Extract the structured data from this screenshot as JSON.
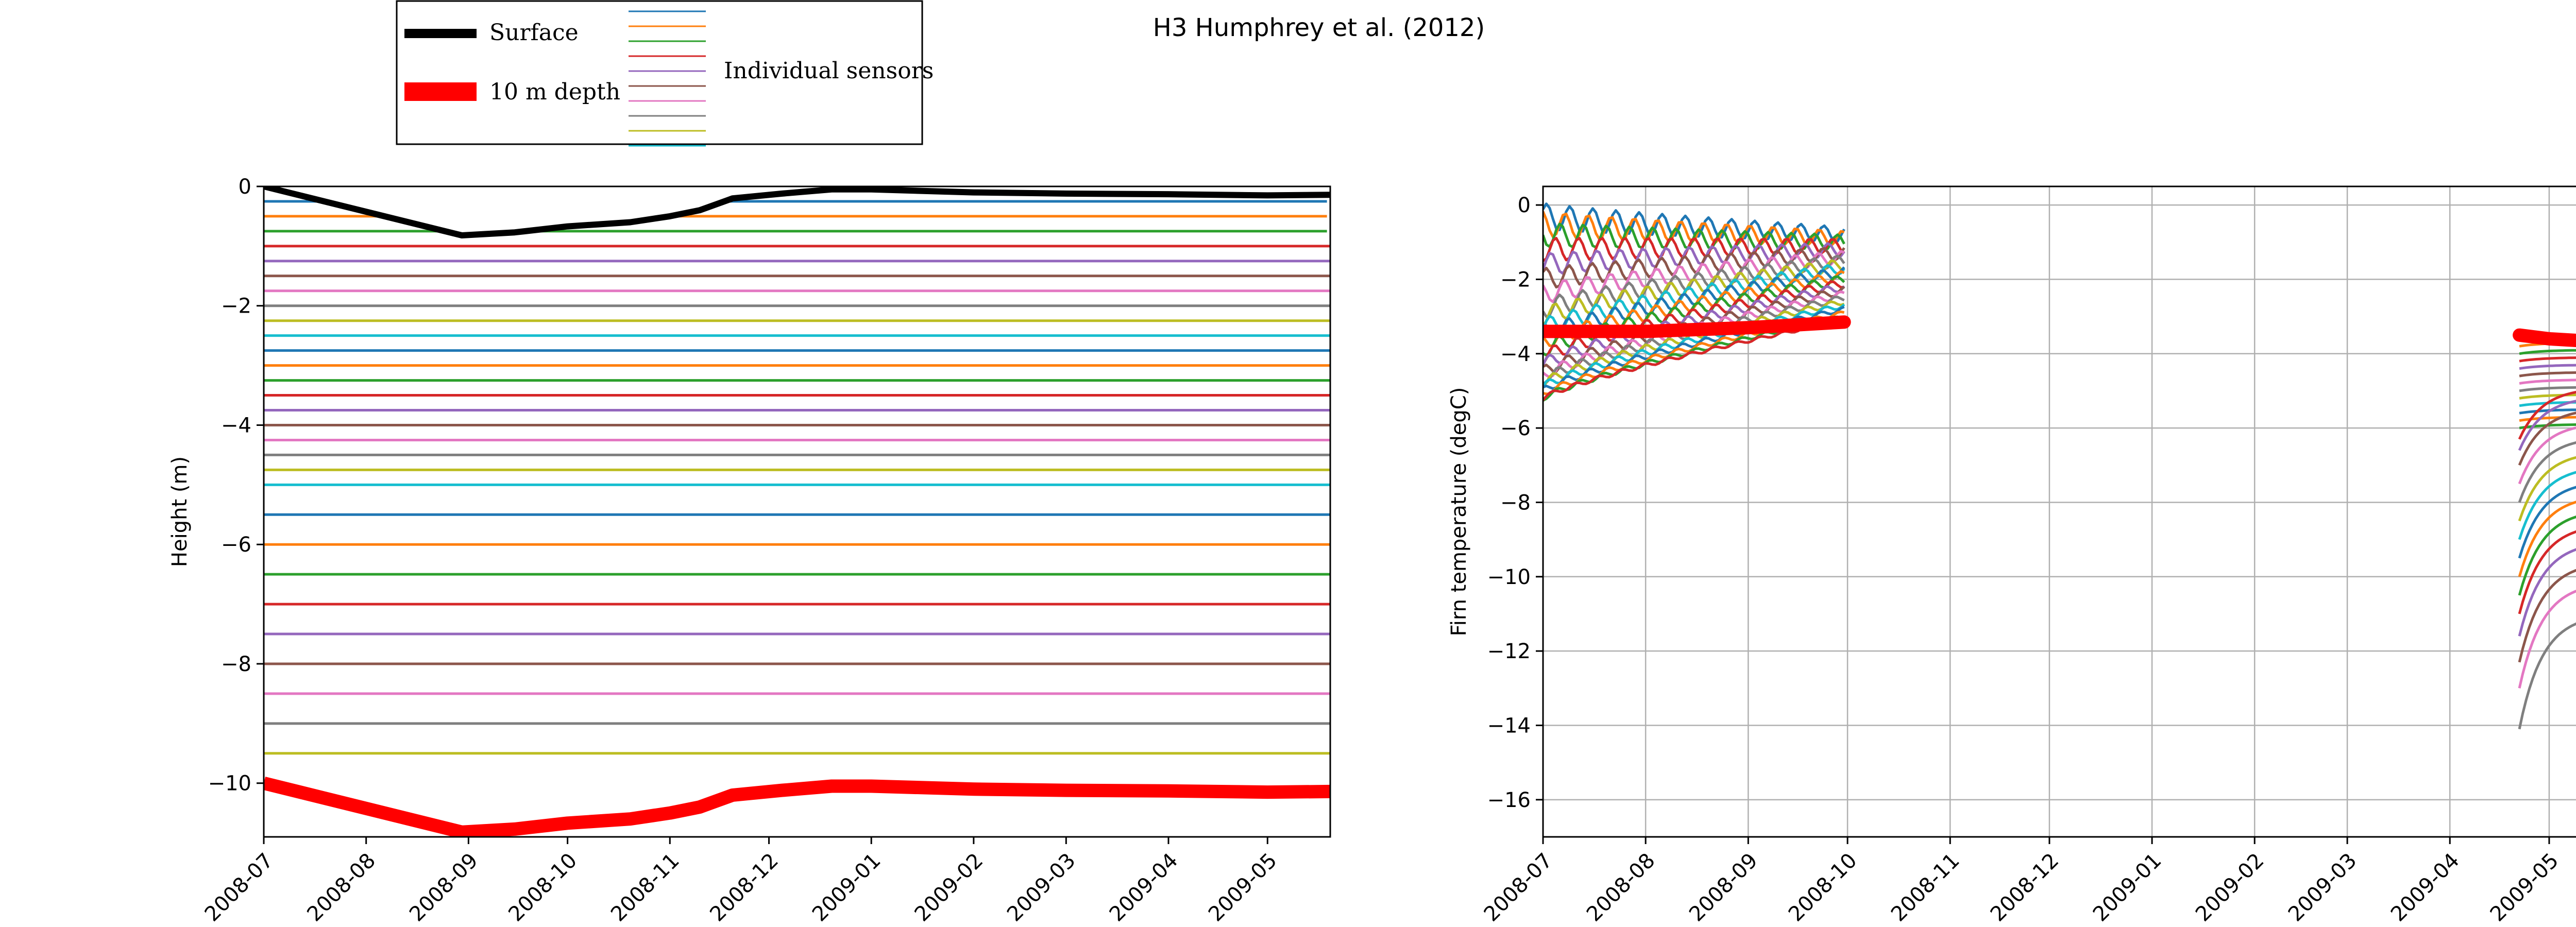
{
  "figure_title": "H3 Humphrey et al. (2012)",
  "legend": {
    "surface_label": "Surface",
    "depth_label": "10 m depth",
    "sensors_label": "Individual sensors",
    "surface_color": "#000000",
    "depth_color": "#ff0000",
    "sensor_colors": [
      "#1f77b4",
      "#ff7f0e",
      "#2ca02c",
      "#d62728",
      "#9467bd",
      "#8c564b",
      "#e377c2",
      "#7f7f7f",
      "#bcbd22",
      "#17becf"
    ]
  },
  "chart_data": [
    {
      "type": "line",
      "title": "",
      "xlabel": "",
      "ylabel": "Height (m)",
      "x_axis": "date",
      "xlim": [
        "2008-07-01",
        "2009-05-20"
      ],
      "ylim": [
        -10.9,
        0
      ],
      "xticks": [
        "2008-07",
        "2008-08",
        "2008-09",
        "2008-10",
        "2008-11",
        "2008-12",
        "2009-01",
        "2009-02",
        "2009-03",
        "2009-04",
        "2009-05"
      ],
      "yticks": [
        0,
        -2,
        -4,
        -6,
        -8,
        -10
      ],
      "grid": false,
      "surface": {
        "x": [
          "2008-07-01",
          "2008-08-30",
          "2008-09-15",
          "2008-10-01",
          "2008-10-20",
          "2008-11-01",
          "2008-11-10",
          "2008-11-20",
          "2008-12-05",
          "2008-12-20",
          "2009-01-01",
          "2009-02-01",
          "2009-03-01",
          "2009-04-01",
          "2009-05-01",
          "2009-05-20"
        ],
        "y": [
          0.0,
          -0.82,
          -0.77,
          -0.67,
          -0.6,
          -0.5,
          -0.4,
          -0.2,
          -0.12,
          -0.05,
          -0.05,
          -0.1,
          -0.12,
          -0.13,
          -0.15,
          -0.14
        ]
      },
      "ten_m_depth": {
        "x": [
          "2008-07-01",
          "2008-08-30",
          "2008-09-15",
          "2008-10-01",
          "2008-10-20",
          "2008-11-01",
          "2008-11-10",
          "2008-11-20",
          "2008-12-05",
          "2008-12-20",
          "2009-01-01",
          "2009-02-01",
          "2009-03-01",
          "2009-04-01",
          "2009-05-01",
          "2009-05-20"
        ],
        "y": [
          -10.0,
          -10.82,
          -10.77,
          -10.67,
          -10.6,
          -10.5,
          -10.4,
          -10.2,
          -10.12,
          -10.05,
          -10.05,
          -10.1,
          -10.12,
          -10.13,
          -10.15,
          -10.14
        ]
      },
      "sensor_depths": [
        -0.25,
        -0.5,
        -0.75,
        -1.0,
        -1.25,
        -1.5,
        -1.75,
        -2.0,
        -2.25,
        -2.5,
        -2.75,
        -3.0,
        -3.25,
        -3.5,
        -3.75,
        -4.0,
        -4.25,
        -4.5,
        -4.75,
        -5.0,
        -5.5,
        -6.0,
        -6.5,
        -7.0,
        -7.5,
        -8.0,
        -8.5,
        -9.0,
        -9.5
      ]
    },
    {
      "type": "line",
      "title": "",
      "xlabel": "",
      "ylabel": "Firn temperature (degC)",
      "x_axis": "date",
      "xlim": [
        "2008-07-01",
        "2009-05-20"
      ],
      "ylim": [
        -17,
        0.5
      ],
      "xticks": [
        "2008-07",
        "2008-08",
        "2008-09",
        "2008-10",
        "2008-11",
        "2008-12",
        "2009-01",
        "2009-02",
        "2009-03",
        "2009-04",
        "2009-05"
      ],
      "yticks": [
        0,
        -2,
        -4,
        -6,
        -8,
        -10,
        -12,
        -14,
        -16
      ],
      "grid": true,
      "summer_segment": {
        "x_start": "2008-07-01",
        "x_end": "2008-09-30",
        "surface_end_temps": [
          -0.8,
          -0.9,
          -1.0,
          -1.1,
          -1.2,
          -1.3,
          -1.4,
          -1.5,
          -1.6,
          -1.7,
          -1.8,
          -1.9,
          -2.0,
          -2.1,
          -2.2,
          -2.3,
          -2.4,
          -2.5,
          -2.6,
          -2.7,
          -2.8,
          -2.9,
          -3.0,
          -3.1
        ],
        "sensor_start_temps": [
          -0.3,
          -0.5,
          -0.8,
          -1.2,
          -1.6,
          -2.0,
          -2.4,
          -2.8,
          -3.0,
          -3.3,
          -3.5,
          -3.7,
          -3.9,
          -4.1,
          -4.3,
          -4.5,
          -4.6,
          -4.7,
          -4.8,
          -4.9,
          -5.0,
          -5.1,
          -5.2,
          -5.2
        ],
        "ten_m_depth": {
          "x": [
            "2008-07-01",
            "2008-08-01",
            "2008-09-01",
            "2008-09-30"
          ],
          "y": [
            -3.4,
            -3.4,
            -3.3,
            -3.15
          ]
        }
      },
      "spring_segment": {
        "x_start": "2009-04-22",
        "x_end": "2009-05-20",
        "sensor_start_temps": [
          -3.6,
          -3.8,
          -4.0,
          -4.2,
          -4.4,
          -4.6,
          -4.8,
          -5.0,
          -5.2,
          -5.4,
          -5.6,
          -5.8,
          -6.0,
          -6.3,
          -6.6,
          -7.0,
          -7.5,
          -8.0,
          -8.5,
          -9.0,
          -9.5,
          -10.0,
          -10.5,
          -11.0,
          -11.6,
          -12.3,
          -13.0,
          -14.1
        ],
        "ten_m_depth": {
          "x": [
            "2009-04-22",
            "2009-05-01",
            "2009-05-20"
          ],
          "y": [
            -3.5,
            -3.6,
            -3.7
          ]
        }
      }
    }
  ]
}
